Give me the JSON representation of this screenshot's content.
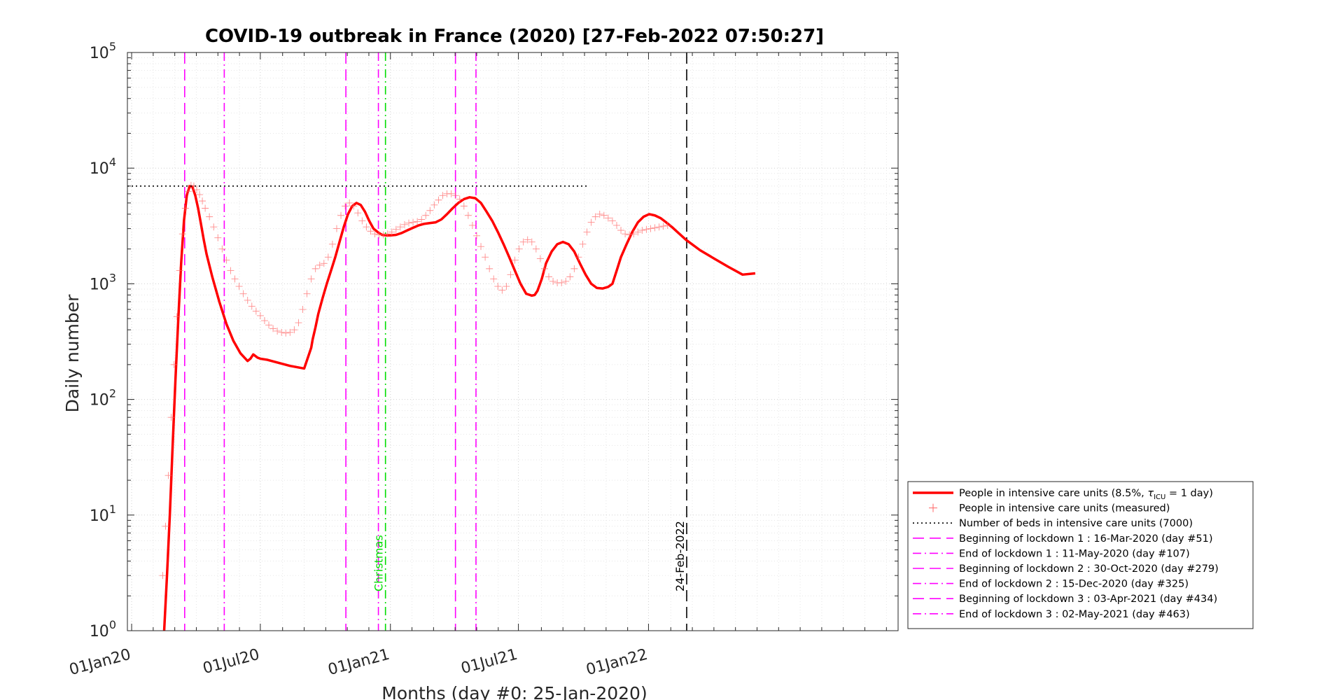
{
  "chart_data": {
    "type": "line",
    "title": "COVID-19 outbreak in France (2020) [27-Feb-2022 07:50:27]",
    "xlabel": "Months (day #0: 25-Jan-2020)",
    "ylabel": "Daily number",
    "yscale": "log",
    "ylim": [
      1,
      100000
    ],
    "xlim_days": [
      -30,
      1060
    ],
    "grid": true,
    "x_ticks": [
      {
        "day": -24,
        "label": "01Jan20"
      },
      {
        "day": 158,
        "label": "01Jul20"
      },
      {
        "day": 342,
        "label": "01Jan21"
      },
      {
        "day": 523,
        "label": "01Jul21"
      },
      {
        "day": 707,
        "label": "01Jan22"
      }
    ],
    "y_ticks": [
      {
        "value": 1,
        "base": "10",
        "exp": "0"
      },
      {
        "value": 10,
        "base": "10",
        "exp": "1"
      },
      {
        "value": 100,
        "base": "10",
        "exp": "2"
      },
      {
        "value": 1000,
        "base": "10",
        "exp": "3"
      },
      {
        "value": 10000,
        "base": "10",
        "exp": "4"
      },
      {
        "value": 100000,
        "base": "10",
        "exp": "5"
      }
    ],
    "series": [
      {
        "name": "People in intensive care units (8.5%, τICU = 1 day)",
        "style": "line",
        "color": "#ff0000",
        "x": [
          22,
          26,
          30,
          34,
          38,
          42,
          46,
          50,
          54,
          58,
          62,
          66,
          70,
          74,
          78,
          82,
          90,
          100,
          110,
          120,
          130,
          140,
          144,
          148,
          150,
          154,
          158,
          168,
          180,
          200,
          220,
          230,
          232,
          236,
          240,
          246,
          252,
          258,
          264,
          270,
          276,
          282,
          288,
          294,
          300,
          306,
          312,
          318,
          324,
          330,
          336,
          342,
          350,
          358,
          366,
          374,
          382,
          390,
          398,
          406,
          414,
          422,
          430,
          438,
          446,
          454,
          462,
          470,
          478,
          486,
          494,
          502,
          510,
          518,
          526,
          534,
          542,
          546,
          550,
          556,
          562,
          570,
          578,
          586,
          594,
          602,
          610,
          618,
          626,
          634,
          642,
          650,
          656,
          662,
          668,
          676,
          684,
          692,
          700,
          708,
          716,
          724,
          732,
          740,
          748,
          760,
          780,
          800,
          820,
          840,
          858
        ],
        "y": [
          1,
          3,
          10,
          40,
          150,
          500,
          1500,
          3500,
          5800,
          7000,
          6900,
          5800,
          4500,
          3300,
          2400,
          1800,
          1150,
          700,
          450,
          320,
          250,
          215,
          225,
          245,
          240,
          230,
          225,
          220,
          210,
          195,
          185,
          280,
          330,
          420,
          550,
          750,
          1000,
          1300,
          1700,
          2300,
          3100,
          4000,
          4700,
          5000,
          4800,
          4200,
          3500,
          3000,
          2800,
          2650,
          2620,
          2620,
          2650,
          2750,
          2900,
          3050,
          3200,
          3300,
          3350,
          3400,
          3600,
          4000,
          4500,
          5000,
          5400,
          5600,
          5500,
          5000,
          4200,
          3500,
          2800,
          2200,
          1700,
          1300,
          1000,
          820,
          790,
          800,
          870,
          1100,
          1500,
          1900,
          2200,
          2300,
          2200,
          1900,
          1500,
          1200,
          1000,
          920,
          910,
          940,
          1000,
          1300,
          1700,
          2200,
          2800,
          3400,
          3800,
          4000,
          3900,
          3700,
          3400,
          3100,
          2800,
          2400,
          1950,
          1650,
          1400,
          1200,
          1230
        ]
      },
      {
        "name": "People in intensive care units (measured)",
        "style": "markers",
        "marker": "+",
        "color": "#ff6666",
        "x": [
          20,
          24,
          28,
          32,
          36,
          40,
          44,
          48,
          52,
          56,
          60,
          64,
          68,
          72,
          76,
          80,
          86,
          92,
          98,
          104,
          110,
          116,
          122,
          128,
          134,
          140,
          146,
          152,
          158,
          164,
          170,
          176,
          182,
          188,
          194,
          200,
          206,
          212,
          218,
          224,
          230,
          236,
          242,
          248,
          254,
          260,
          266,
          272,
          278,
          284,
          290,
          296,
          302,
          308,
          314,
          320,
          326,
          332,
          338,
          344,
          350,
          356,
          362,
          368,
          374,
          380,
          386,
          392,
          398,
          404,
          410,
          416,
          422,
          428,
          434,
          440,
          446,
          452,
          458,
          464,
          470,
          476,
          482,
          488,
          494,
          500,
          506,
          512,
          518,
          524,
          530,
          536,
          542,
          548,
          554,
          560,
          566,
          572,
          578,
          584,
          590,
          596,
          602,
          608,
          614,
          620,
          626,
          632,
          638,
          644,
          650,
          656,
          662,
          668,
          674,
          680,
          686,
          692,
          698,
          704,
          710,
          716,
          722,
          728,
          734
        ],
        "y": [
          3,
          8,
          22,
          70,
          200,
          520,
          1300,
          2700,
          4500,
          6300,
          7100,
          7000,
          6500,
          5900,
          5200,
          4500,
          3800,
          3100,
          2500,
          2000,
          1600,
          1300,
          1100,
          950,
          820,
          720,
          640,
          580,
          530,
          480,
          440,
          410,
          390,
          380,
          375,
          380,
          400,
          460,
          600,
          820,
          1100,
          1350,
          1450,
          1500,
          1700,
          2200,
          3000,
          3900,
          4700,
          5000,
          4700,
          4100,
          3500,
          3100,
          2850,
          2700,
          2650,
          2650,
          2700,
          2800,
          2950,
          3100,
          3250,
          3350,
          3400,
          3450,
          3600,
          3900,
          4300,
          4800,
          5300,
          5800,
          6000,
          6000,
          5800,
          5400,
          4700,
          3900,
          3200,
          2600,
          2100,
          1700,
          1350,
          1100,
          950,
          880,
          950,
          1200,
          1600,
          2000,
          2300,
          2400,
          2300,
          2000,
          1650,
          1350,
          1150,
          1050,
          1020,
          1020,
          1050,
          1150,
          1350,
          1700,
          2200,
          2800,
          3400,
          3800,
          4000,
          3900,
          3700,
          3500,
          3200,
          2900,
          2700,
          2650,
          2700,
          2800,
          2900,
          2950,
          3000,
          3050,
          3100,
          3150,
          3200
        ]
      },
      {
        "name": "Number of beds in intensive care units (7000)",
        "style": "dotted",
        "color": "#000000",
        "x": [
          -30,
          620
        ],
        "y": [
          7000,
          7000
        ]
      }
    ],
    "vertical_lines": [
      {
        "day": 51,
        "style": "dashed",
        "color": "#ff00ff",
        "legend": "Beginning of lockdown 1 : 16-Mar-2020 (day #51)"
      },
      {
        "day": 107,
        "style": "dashdot",
        "color": "#ff00ff",
        "legend": "End of lockdown 1 : 11-May-2020 (day #107)"
      },
      {
        "day": 279,
        "style": "dashed",
        "color": "#ff00ff",
        "legend": "Beginning of lockdown 2 : 30-Oct-2020 (day #279)"
      },
      {
        "day": 325,
        "style": "dashdot",
        "color": "#ff00ff",
        "legend": "End of lockdown 2 : 15-Dec-2020 (day #325)"
      },
      {
        "day": 434,
        "style": "dashed",
        "color": "#ff00ff",
        "legend": "Beginning of lockdown 3 : 03-Apr-2021 (day #434)"
      },
      {
        "day": 463,
        "style": "dashdot",
        "color": "#ff00ff",
        "legend": "End of lockdown 3 : 02-May-2021 (day #463)"
      },
      {
        "day": 335,
        "style": "dashdot",
        "color": "#00dd00",
        "label": "Christmas"
      },
      {
        "day": 761,
        "style": "dashed",
        "color": "#000000",
        "label": "24-Feb-2022"
      }
    ],
    "legend": {
      "placement": "bottom-right outside",
      "entries": [
        {
          "text": "People in intensive care units (8.5%, ",
          "tau": "τ",
          "sub": "ICU",
          "tail": " = 1 day)",
          "style": "solid",
          "color": "#ff0000"
        },
        {
          "text": "People in intensive care units (measured)",
          "style": "marker",
          "color": "#ff6666"
        },
        {
          "text": "Number of beds in intensive care units (7000)",
          "style": "dotted",
          "color": "#000000"
        },
        {
          "text": "Beginning of lockdown 1 : 16-Mar-2020 (day #51)",
          "style": "dashed",
          "color": "#ff00ff"
        },
        {
          "text": "End of lockdown 1 : 11-May-2020 (day #107)",
          "style": "dashdot",
          "color": "#ff00ff"
        },
        {
          "text": "Beginning of lockdown 2 : 30-Oct-2020 (day #279)",
          "style": "dashed",
          "color": "#ff00ff"
        },
        {
          "text": "End of lockdown 2 : 15-Dec-2020 (day #325)",
          "style": "dashdot",
          "color": "#ff00ff"
        },
        {
          "text": "Beginning of lockdown 3 : 03-Apr-2021 (day #434)",
          "style": "dashed",
          "color": "#ff00ff"
        },
        {
          "text": "End of lockdown 3 : 02-May-2021 (day #463)",
          "style": "dashdot",
          "color": "#ff00ff"
        }
      ]
    }
  }
}
